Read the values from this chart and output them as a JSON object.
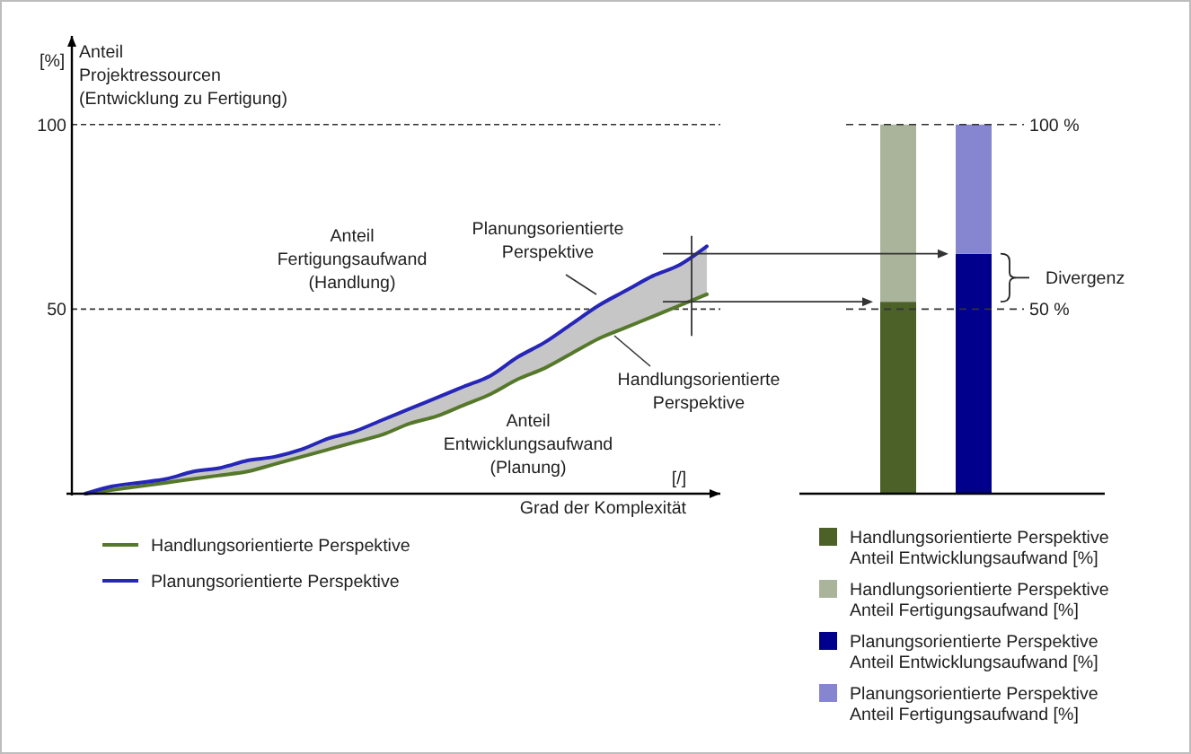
{
  "chart_data": [
    {
      "type": "line",
      "xlabel": "Grad der Komplexität",
      "ylabel": "Anteil\nProjektressourcen\n(Entwicklung zu Fertigung)",
      "categories": [
        null,
        null,
        null,
        null,
        null,
        null,
        null,
        null,
        null,
        null,
        null,
        null,
        null,
        null,
        null,
        null,
        null,
        null,
        null,
        null,
        null,
        null,
        null,
        null
      ],
      "ylim": [
        0,
        124
      ],
      "yticks": [
        50,
        100
      ],
      "grid": "y",
      "tick_labels": "y",
      "legend": "bottom left",
      "annotations": [
        "[%]",
        "Anteil\nFertigungsaufwand\n(Handlung)",
        "Planungsorientierte\nPerspektive",
        "Handlungsorientierte\nPerspektive",
        "Anteil\nEntwicklungsaufwand\n(Planung)",
        "[/]"
      ],
      "series": [
        {
          "name": "Handlungsorientierte Perspektive",
          "color": "#56782a",
          "values": [
            0,
            1,
            2,
            3,
            4,
            5,
            6,
            8,
            10,
            12,
            14,
            16,
            19,
            21,
            24,
            27,
            31,
            34,
            38,
            42,
            45,
            48,
            51,
            54
          ]
        },
        {
          "name": "Planungsorientierte Perspektive",
          "color": "#2626b8",
          "values": [
            0,
            2,
            3,
            4,
            6,
            7,
            9,
            10,
            12,
            15,
            17,
            20,
            23,
            26,
            29,
            32,
            37,
            41,
            46,
            51,
            55,
            59,
            62,
            67
          ],
          "lower": [
            0,
            1,
            2,
            3,
            4,
            5,
            6,
            8,
            10,
            12,
            14,
            16,
            19,
            21,
            24,
            27,
            31,
            34,
            38,
            42,
            45,
            48,
            51,
            54
          ],
          "upper": [
            0,
            2,
            3,
            4,
            6,
            7,
            9,
            10,
            12,
            15,
            17,
            20,
            23,
            26,
            29,
            32,
            37,
            41,
            46,
            51,
            55,
            59,
            62,
            67
          ]
        }
      ]
    },
    {
      "type": "bar",
      "stacked": true,
      "categories": [
        null,
        null
      ],
      "ylim": [
        0,
        100
      ],
      "tick_labels": false,
      "legend": "bottom right",
      "ref_lines": [
        {
          "axis": "y",
          "value": 100,
          "label": "100 %",
          "line_style": "dashed"
        },
        {
          "axis": "y",
          "value": 50,
          "label": "50 %",
          "line_style": "dashed"
        }
      ],
      "annotations": [
        "Divergenz"
      ],
      "series": [
        {
          "name": "Handlungsorientierte Perspektive\nAnteil Entwicklungsaufwand [%]",
          "color": "#4b6128",
          "values": [
            52,
            null
          ]
        },
        {
          "name": "Handlungsorientierte Perspektive\nAnteil Fertigungsaufwand [%]",
          "color": "#aab49a",
          "values": [
            48,
            null
          ]
        },
        {
          "name": "Planungsorientierte Perspektive\nAnteil Entwicklungsaufwand [%]",
          "color": "#00008c",
          "values": [
            null,
            65
          ]
        },
        {
          "name": "Planungsorientierte Perspektive\nAnteil Fertigungsaufwand [%]",
          "color": "#8585d0",
          "values": [
            null,
            35
          ]
        }
      ]
    }
  ]
}
